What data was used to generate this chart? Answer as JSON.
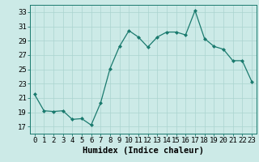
{
  "x": [
    0,
    1,
    2,
    3,
    4,
    5,
    6,
    7,
    8,
    9,
    10,
    11,
    12,
    13,
    14,
    15,
    16,
    17,
    18,
    19,
    20,
    21,
    22,
    23
  ],
  "y": [
    21.5,
    19.2,
    19.1,
    19.2,
    18.0,
    18.1,
    17.2,
    20.3,
    25.1,
    28.2,
    30.4,
    29.5,
    28.1,
    29.5,
    30.2,
    30.2,
    29.8,
    33.2,
    29.3,
    28.2,
    27.8,
    26.2,
    26.2,
    23.3
  ],
  "line_color": "#1a7a6e",
  "marker": "D",
  "marker_size": 2.0,
  "bg_color": "#cceae7",
  "grid_color": "#aad4d0",
  "xlabel": "Humidex (Indice chaleur)",
  "ylim": [
    16,
    34
  ],
  "xlim": [
    -0.5,
    23.5
  ],
  "yticks": [
    17,
    19,
    21,
    23,
    25,
    27,
    29,
    31,
    33
  ],
  "xtick_labels": [
    "0",
    "1",
    "2",
    "3",
    "4",
    "5",
    "6",
    "7",
    "8",
    "9",
    "10",
    "11",
    "12",
    "13",
    "14",
    "15",
    "16",
    "17",
    "18",
    "19",
    "20",
    "21",
    "22",
    "23"
  ],
  "xlabel_fontsize": 7.5,
  "tick_fontsize": 6.5
}
